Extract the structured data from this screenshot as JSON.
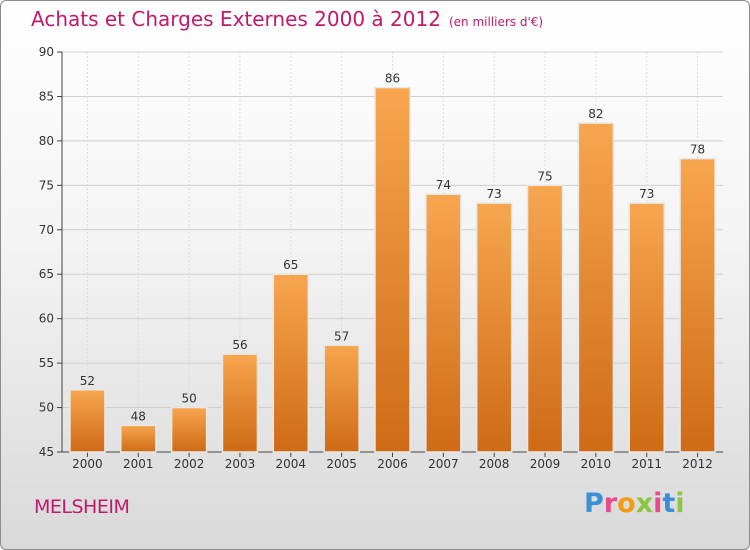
{
  "header": {
    "title": "Achats et Charges Externes 2000 à 2012",
    "unit": "(en milliers d'€)"
  },
  "footer": {
    "commune": "MELSHEIM",
    "logo": {
      "letters": [
        "P",
        "r",
        "o",
        "x",
        "i",
        "t",
        "i"
      ],
      "colors": [
        "#3a8fd6",
        "#e94a8c",
        "#f39c12",
        "#8cc63f",
        "#e94a8c",
        "#3a8fd6",
        "#8cc63f"
      ]
    }
  },
  "colors": {
    "accent": "#c01a6a",
    "bar_top": "#f7a64f",
    "bar_bottom": "#cf6a15",
    "axis": "#444444"
  },
  "chart_data": {
    "type": "bar",
    "categories": [
      "2000",
      "2001",
      "2002",
      "2003",
      "2004",
      "2005",
      "2006",
      "2007",
      "2008",
      "2009",
      "2010",
      "2011",
      "2012"
    ],
    "values": [
      52,
      48,
      50,
      56,
      65,
      57,
      86,
      74,
      73,
      75,
      82,
      73,
      78
    ],
    "ylim": [
      45,
      90
    ],
    "yticks": [
      45,
      50,
      55,
      60,
      65,
      70,
      75,
      80,
      85,
      90
    ],
    "title": "Achats et Charges Externes 2000 à 2012",
    "xlabel": "",
    "ylabel": "",
    "grid": true,
    "data_labels": true
  }
}
